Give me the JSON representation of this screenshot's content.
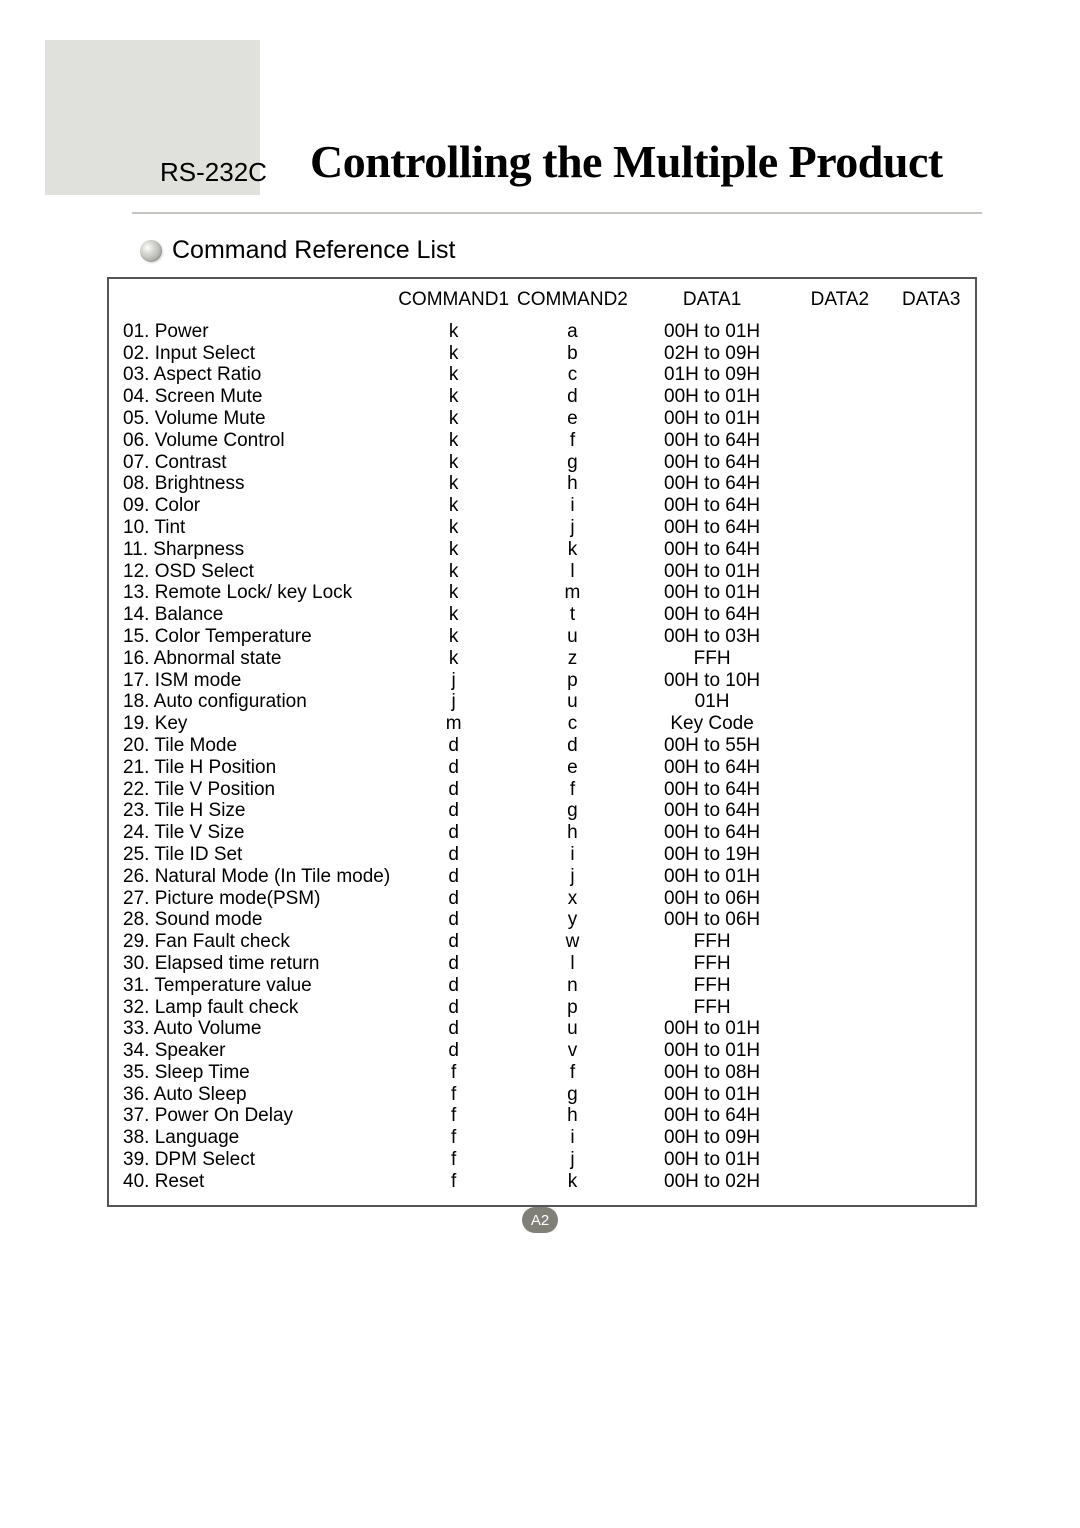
{
  "header": {
    "prefix": "RS-232C",
    "title": "Controlling the Multiple Product"
  },
  "section": {
    "title": "Command Reference List"
  },
  "table": {
    "columns": {
      "name": "",
      "command1": "COMMAND1",
      "command2": "COMMAND2",
      "data1": "DATA1",
      "data2": "DATA2",
      "data3": "DATA3"
    },
    "rows": [
      {
        "name": "01. Power",
        "c1": "k",
        "c2": "a",
        "d1": "00H  to  01H",
        "d2": "",
        "d3": ""
      },
      {
        "name": "02. Input Select",
        "c1": "k",
        "c2": "b",
        "d1": "02H  to  09H",
        "d2": "",
        "d3": ""
      },
      {
        "name": "03. Aspect Ratio",
        "c1": "k",
        "c2": "c",
        "d1": "01H  to  09H",
        "d2": "",
        "d3": ""
      },
      {
        "name": "04. Screen Mute",
        "c1": "k",
        "c2": "d",
        "d1": "00H  to  01H",
        "d2": "",
        "d3": ""
      },
      {
        "name": "05. Volume Mute",
        "c1": "k",
        "c2": "e",
        "d1": "00H  to  01H",
        "d2": "",
        "d3": ""
      },
      {
        "name": "06. Volume Control",
        "c1": "k",
        "c2": "f",
        "d1": "00H  to  64H",
        "d2": "",
        "d3": ""
      },
      {
        "name": "07. Contrast",
        "c1": "k",
        "c2": "g",
        "d1": "00H  to  64H",
        "d2": "",
        "d3": ""
      },
      {
        "name": "08. Brightness",
        "c1": "k",
        "c2": "h",
        "d1": "00H  to  64H",
        "d2": "",
        "d3": ""
      },
      {
        "name": "09. Color",
        "c1": "k",
        "c2": "i",
        "d1": "00H  to  64H",
        "d2": "",
        "d3": ""
      },
      {
        "name": "10. Tint",
        "c1": "k",
        "c2": "j",
        "d1": "00H  to  64H",
        "d2": "",
        "d3": ""
      },
      {
        "name": "11. Sharpness",
        "c1": "k",
        "c2": "k",
        "d1": "00H  to  64H",
        "d2": "",
        "d3": ""
      },
      {
        "name": "12. OSD Select",
        "c1": "k",
        "c2": "l",
        "d1": "00H  to  01H",
        "d2": "",
        "d3": ""
      },
      {
        "name": "13. Remote Lock/ key Lock",
        "c1": "k",
        "c2": "m",
        "d1": "00H  to  01H",
        "d2": "",
        "d3": ""
      },
      {
        "name": "14. Balance",
        "c1": "k",
        "c2": "t",
        "d1": "00H  to  64H",
        "d2": "",
        "d3": ""
      },
      {
        "name": "15. Color Temperature",
        "c1": "k",
        "c2": "u",
        "d1": "00H  to  03H",
        "d2": "",
        "d3": ""
      },
      {
        "name": "16. Abnormal state",
        "c1": "k",
        "c2": "z",
        "d1": "FFH",
        "d2": "",
        "d3": ""
      },
      {
        "name": "17. ISM mode",
        "c1": "j",
        "c2": "p",
        "d1": "00H  to  10H",
        "d2": "",
        "d3": ""
      },
      {
        "name": "18. Auto configuration",
        "c1": "j",
        "c2": "u",
        "d1": "01H",
        "d2": "",
        "d3": ""
      },
      {
        "name": "19. Key",
        "c1": "m",
        "c2": "c",
        "d1": "Key Code",
        "d2": "",
        "d3": ""
      },
      {
        "name": "20. Tile Mode",
        "c1": "d",
        "c2": "d",
        "d1": "00H  to  55H",
        "d2": "",
        "d3": ""
      },
      {
        "name": "21. Tile H Position",
        "c1": "d",
        "c2": "e",
        "d1": "00H  to  64H",
        "d2": "",
        "d3": ""
      },
      {
        "name": "22. Tile V Position",
        "c1": "d",
        "c2": "f",
        "d1": "00H  to  64H",
        "d2": "",
        "d3": ""
      },
      {
        "name": "23. Tile H Size",
        "c1": "d",
        "c2": "g",
        "d1": "00H  to  64H",
        "d2": "",
        "d3": ""
      },
      {
        "name": "24. Tile V Size",
        "c1": "d",
        "c2": "h",
        "d1": "00H  to  64H",
        "d2": "",
        "d3": ""
      },
      {
        "name": "25. Tile ID Set",
        "c1": "d",
        "c2": "i",
        "d1": "00H  to  19H",
        "d2": "",
        "d3": ""
      },
      {
        "name": "26. Natural Mode (In Tile mode)",
        "c1": "d",
        "c2": "j",
        "d1": "00H  to  01H",
        "d2": "",
        "d3": ""
      },
      {
        "name": "27. Picture mode(PSM)",
        "c1": "d",
        "c2": "x",
        "d1": "00H  to  06H",
        "d2": "",
        "d3": ""
      },
      {
        "name": "28. Sound mode",
        "c1": "d",
        "c2": "y",
        "d1": "00H  to  06H",
        "d2": "",
        "d3": ""
      },
      {
        "name": "29. Fan Fault check",
        "c1": "d",
        "c2": "w",
        "d1": "FFH",
        "d2": "",
        "d3": ""
      },
      {
        "name": "30. Elapsed time return",
        "c1": "d",
        "c2": "l",
        "d1": "FFH",
        "d2": "",
        "d3": ""
      },
      {
        "name": "31. Temperature value",
        "c1": "d",
        "c2": "n",
        "d1": "FFH",
        "d2": "",
        "d3": ""
      },
      {
        "name": "32. Lamp fault check",
        "c1": "d",
        "c2": "p",
        "d1": "FFH",
        "d2": "",
        "d3": ""
      },
      {
        "name": "33. Auto Volume",
        "c1": "d",
        "c2": "u",
        "d1": "00H  to  01H",
        "d2": "",
        "d3": ""
      },
      {
        "name": "34. Speaker",
        "c1": "d",
        "c2": "v",
        "d1": "00H  to  01H",
        "d2": "",
        "d3": ""
      },
      {
        "name": "35. Sleep Time",
        "c1": "f",
        "c2": "f",
        "d1": "00H  to  08H",
        "d2": "",
        "d3": ""
      },
      {
        "name": "36. Auto Sleep",
        "c1": "f",
        "c2": "g",
        "d1": "00H  to  01H",
        "d2": "",
        "d3": ""
      },
      {
        "name": "37. Power On Delay",
        "c1": "f",
        "c2": "h",
        "d1": "00H  to  64H",
        "d2": "",
        "d3": ""
      },
      {
        "name": "38. Language",
        "c1": "f",
        "c2": "i",
        "d1": "00H  to  09H",
        "d2": "",
        "d3": ""
      },
      {
        "name": "39. DPM Select",
        "c1": "f",
        "c2": "j",
        "d1": "00H  to  01H",
        "d2": "",
        "d3": ""
      },
      {
        "name": "40. Reset",
        "c1": "f",
        "c2": "k",
        "d1": "00H  to  02H",
        "d2": "",
        "d3": ""
      }
    ]
  },
  "page_number": "A2",
  "colors": {
    "gray_block": "#e0e0dc",
    "rule": "#c5c5c1",
    "badge_bg": "#808079",
    "text": "#000000"
  }
}
